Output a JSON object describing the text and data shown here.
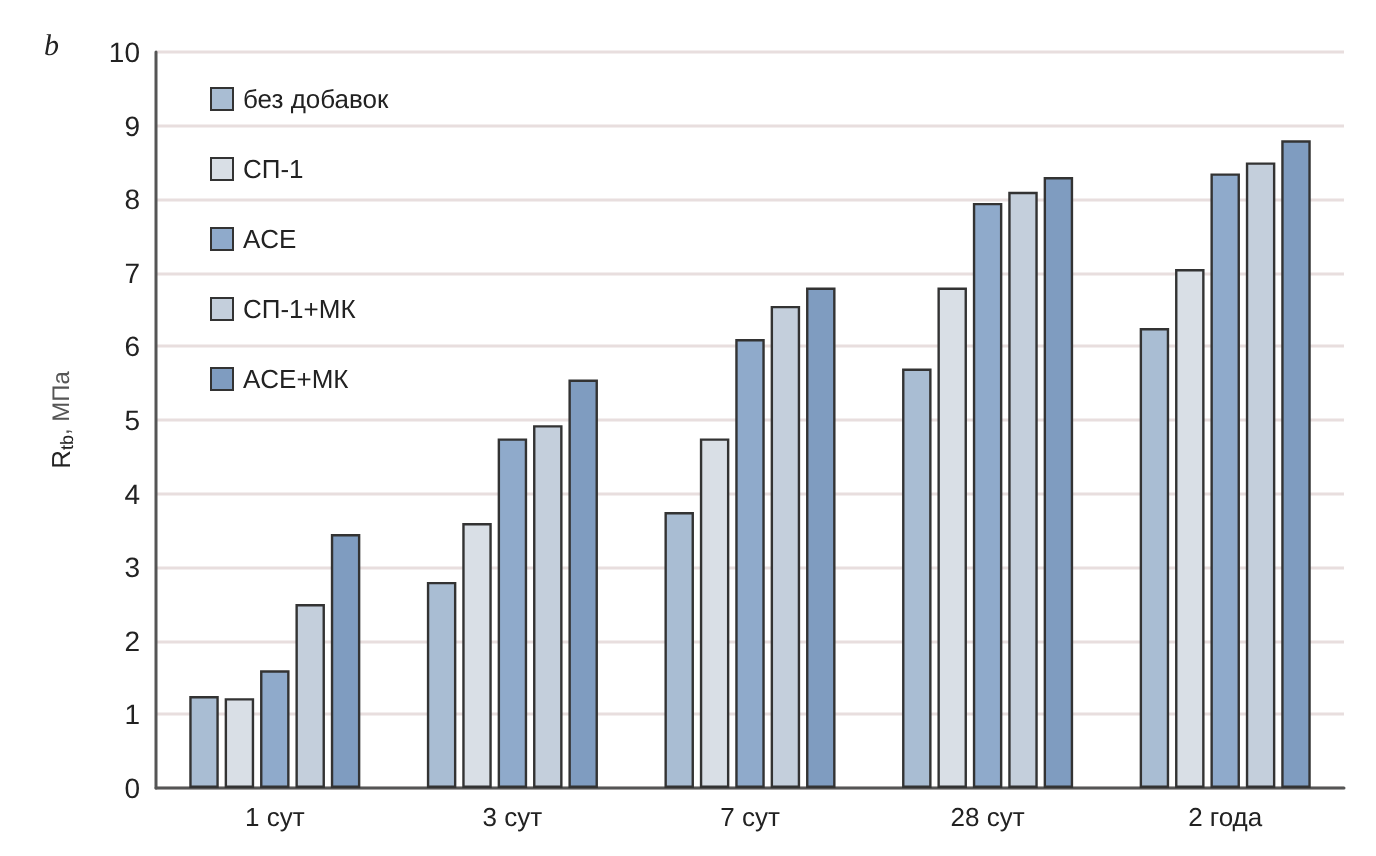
{
  "chart_data": {
    "type": "bar",
    "ylabel": "R$_{tb}$, МПа",
    "annotations": [
      "b"
    ],
    "categories": [
      "1 сут",
      "3 сут",
      "7 сут",
      "28 сут",
      "2 года"
    ],
    "series": [
      {
        "name": "без добавок",
        "color": "#a9bdd3",
        "values": [
          1.25,
          2.8,
          3.75,
          5.7,
          6.25
        ]
      },
      {
        "name": "СП-1",
        "color": "#d9dfe6",
        "values": [
          1.22,
          3.6,
          4.75,
          6.8,
          7.05
        ]
      },
      {
        "name": "ACE",
        "color": "#8faacb",
        "values": [
          1.6,
          4.75,
          6.1,
          7.95,
          8.35
        ]
      },
      {
        "name": "СП-1+МК",
        "color": "#c4cfdc",
        "values": [
          2.5,
          4.93,
          6.55,
          8.1,
          8.5
        ]
      },
      {
        "name": "ACE+МК",
        "color": "#7f9cc0",
        "values": [
          3.45,
          5.55,
          6.8,
          8.3,
          8.8
        ]
      }
    ],
    "ylim": [
      0,
      10
    ],
    "yticks": [
      0,
      1,
      2,
      3,
      4,
      5,
      6,
      7,
      8,
      9,
      10
    ],
    "grid": "y",
    "legend": "top left"
  }
}
